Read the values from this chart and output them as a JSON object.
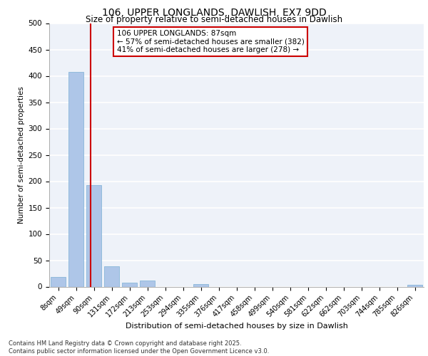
{
  "title_line1": "106, UPPER LONGLANDS, DAWLISH, EX7 9DD",
  "title_line2": "Size of property relative to semi-detached houses in Dawlish",
  "xlabel": "Distribution of semi-detached houses by size in Dawlish",
  "ylabel": "Number of semi-detached properties",
  "categories": [
    "8sqm",
    "49sqm",
    "90sqm",
    "131sqm",
    "172sqm",
    "213sqm",
    "253sqm",
    "294sqm",
    "335sqm",
    "376sqm",
    "417sqm",
    "458sqm",
    "499sqm",
    "540sqm",
    "581sqm",
    "622sqm",
    "662sqm",
    "703sqm",
    "744sqm",
    "785sqm",
    "826sqm"
  ],
  "values": [
    18,
    408,
    193,
    38,
    7,
    11,
    0,
    0,
    5,
    0,
    0,
    0,
    0,
    0,
    0,
    0,
    0,
    0,
    0,
    0,
    3
  ],
  "bar_color": "#aec6e8",
  "bar_edge_color": "#7aafd4",
  "vline_x": 1.82,
  "vline_color": "#cc0000",
  "annotation_title": "106 UPPER LONGLANDS: 87sqm",
  "annotation_line1": "← 57% of semi-detached houses are smaller (382)",
  "annotation_line2": "41% of semi-detached houses are larger (278) →",
  "annotation_box_color": "#cc0000",
  "annotation_box_fill": "#ffffff",
  "ylim": [
    0,
    500
  ],
  "yticks": [
    0,
    50,
    100,
    150,
    200,
    250,
    300,
    350,
    400,
    450,
    500
  ],
  "footer_line1": "Contains HM Land Registry data © Crown copyright and database right 2025.",
  "footer_line2": "Contains public sector information licensed under the Open Government Licence v3.0.",
  "bg_color": "#eef2f9",
  "grid_color": "#ffffff",
  "title_fontsize": 10,
  "subtitle_fontsize": 8.5,
  "xlabel_fontsize": 8,
  "ylabel_fontsize": 7.5,
  "tick_fontsize": 7,
  "footer_fontsize": 6,
  "annot_fontsize": 7.5
}
